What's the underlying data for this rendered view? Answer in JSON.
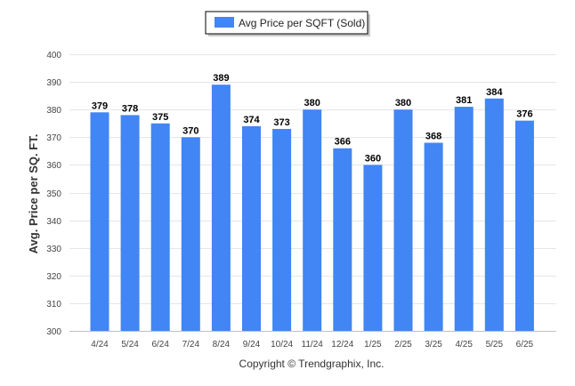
{
  "chart_data": {
    "type": "bar",
    "categories": [
      "4/24",
      "5/24",
      "6/24",
      "7/24",
      "8/24",
      "9/24",
      "10/24",
      "11/24",
      "12/24",
      "1/25",
      "2/25",
      "3/25",
      "4/25",
      "5/25",
      "6/25"
    ],
    "series": [
      {
        "name": "Avg Price per SQFT (Sold)",
        "values": [
          379,
          378,
          375,
          370,
          389,
          374,
          373,
          380,
          366,
          360,
          380,
          368,
          381,
          384,
          376
        ]
      }
    ],
    "title": "",
    "xlabel": "",
    "ylabel": "Avg. Price per SQ. FT.",
    "ylim": [
      300,
      400
    ],
    "yticks": [
      300,
      310,
      320,
      330,
      340,
      350,
      360,
      370,
      380,
      390,
      400
    ],
    "grid": true,
    "legend_position": "top-center",
    "bar_color": "#4285f4"
  },
  "footer": {
    "copyright": "Copyright © Trendgraphix, Inc."
  }
}
